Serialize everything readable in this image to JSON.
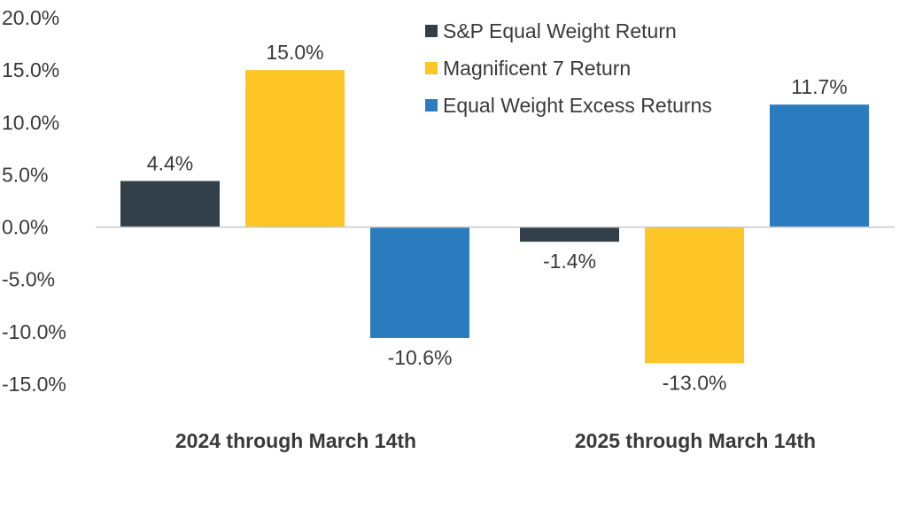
{
  "chart_data": {
    "type": "bar",
    "title": "",
    "xlabel": "",
    "ylabel": "",
    "categories": [
      "2024 through March 14th",
      "2025 through March 14th"
    ],
    "ylim": [
      -15,
      20
    ],
    "yticks": [
      20,
      15,
      10,
      5,
      0,
      -5,
      -10,
      -15
    ],
    "ytick_labels": [
      "20.0%",
      "15.0%",
      "10.0%",
      "5.0%",
      "0.0%",
      "-5.0%",
      "-10.0%",
      "-15.0%"
    ],
    "grid": false,
    "legend_position": "top-right",
    "series": [
      {
        "name": "S&P Equal Weight Return",
        "color": "#333f48",
        "values": [
          4.4,
          -1.4
        ],
        "labels": [
          "4.4%",
          "-1.4%"
        ]
      },
      {
        "name": "Magnificent 7 Return",
        "color": "#fdc526",
        "values": [
          15.0,
          -13.0
        ],
        "labels": [
          "15.0%",
          "-13.0%"
        ]
      },
      {
        "name": "Equal Weight Excess Returns",
        "color": "#2b7bbf",
        "values": [
          -10.6,
          11.7
        ],
        "labels": [
          "-10.6%",
          "11.7%"
        ]
      }
    ]
  }
}
